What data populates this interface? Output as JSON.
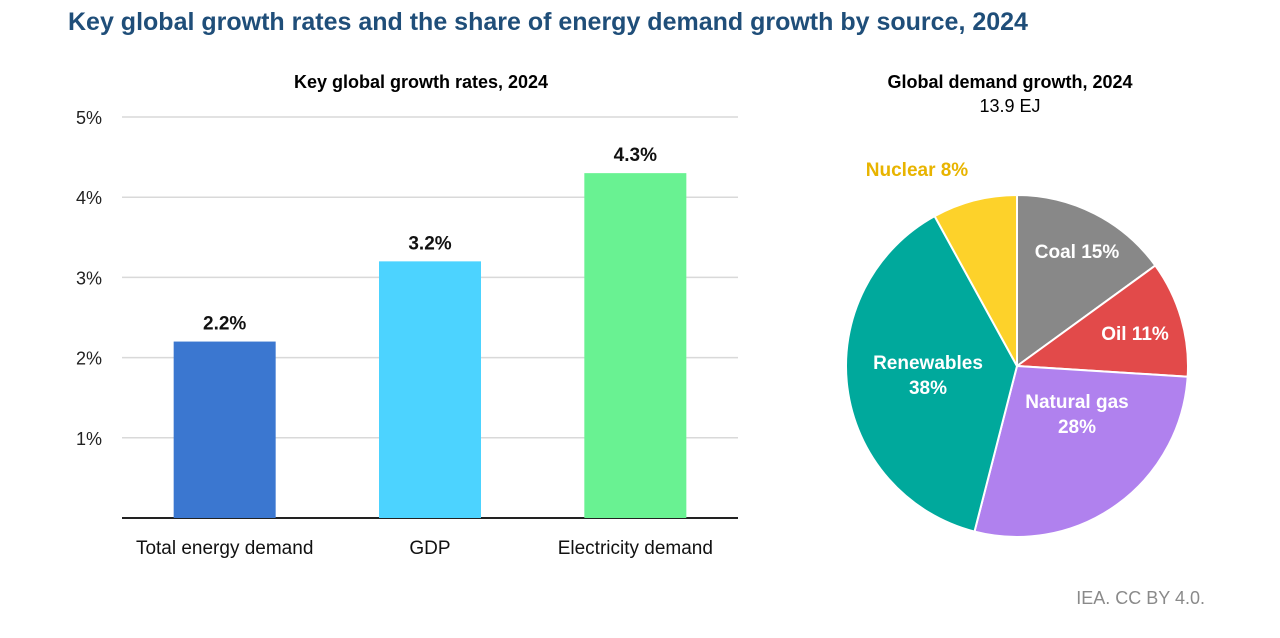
{
  "page": {
    "title": "Key global growth rates and the share of energy demand growth by source, 2024",
    "credit": "IEA. CC BY 4.0."
  },
  "chart_data": [
    {
      "type": "bar",
      "title": "Key global growth rates, 2024",
      "categories": [
        "Total energy demand",
        "GDP",
        "Electricity demand"
      ],
      "values": [
        2.2,
        3.2,
        4.3
      ],
      "data_labels": [
        "2.2%",
        "3.2%",
        "4.3%"
      ],
      "colors": [
        "#3b77d0",
        "#4cd3ff",
        "#69f292"
      ],
      "ylim": [
        0,
        5
      ],
      "yticks": [
        1,
        2,
        3,
        4,
        5
      ],
      "ytick_labels": [
        "1%",
        "2%",
        "3%",
        "4%",
        "5%"
      ],
      "grid": true,
      "xlabel": "",
      "ylabel": ""
    },
    {
      "type": "pie",
      "title": "Global demand growth, 2024",
      "subtitle": "13.9 EJ",
      "slices": [
        {
          "label": "Coal",
          "value": 15,
          "text": "Coal 15%",
          "color": "#888888",
          "label_color": "#ffffff"
        },
        {
          "label": "Oil",
          "value": 11,
          "text": "Oil 11%",
          "color": "#e24a4a",
          "label_color": "#ffffff"
        },
        {
          "label": "Natural gas",
          "value": 28,
          "text": "Natural gas 28%",
          "color": "#b081ee",
          "label_color": "#ffffff"
        },
        {
          "label": "Renewables",
          "value": 38,
          "text": "Renewables 38%",
          "color": "#00a99c",
          "label_color": "#ffffff"
        },
        {
          "label": "Nuclear",
          "value": 8,
          "text": "Nuclear 8%",
          "color": "#fdd22a",
          "label_color": "#e8b400"
        }
      ]
    }
  ]
}
